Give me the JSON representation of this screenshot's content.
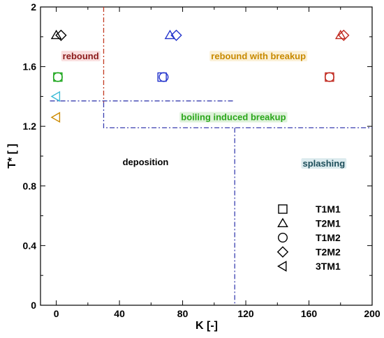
{
  "chart_data": {
    "type": "scatter",
    "xlabel": "K [-]",
    "ylabel": "T* [ ]",
    "xlim": [
      -10,
      200
    ],
    "ylim": [
      0,
      2
    ],
    "xticks": [
      "0",
      "40",
      "80",
      "120",
      "160",
      "200"
    ],
    "yticks": [
      "0",
      "0.4",
      "0.8",
      "1.2",
      "1.6",
      "2"
    ],
    "grid": false,
    "legend_position": "bottom-right",
    "series": [
      {
        "name": "T1M1",
        "marker": "square",
        "points": [
          {
            "x": 1,
            "y": 1.53
          },
          {
            "x": 67,
            "y": 1.53
          },
          {
            "x": 173,
            "y": 1.53
          }
        ]
      },
      {
        "name": "T2M1",
        "marker": "triangle",
        "points": [
          {
            "x": 0,
            "y": 1.81
          },
          {
            "x": 72,
            "y": 1.81
          },
          {
            "x": 180,
            "y": 1.81
          }
        ]
      },
      {
        "name": "T1M2",
        "marker": "circle",
        "points": [
          {
            "x": 1,
            "y": 1.53
          },
          {
            "x": 68,
            "y": 1.53
          },
          {
            "x": 173,
            "y": 1.53
          }
        ]
      },
      {
        "name": "T2M2",
        "marker": "diamond",
        "points": [
          {
            "x": 3,
            "y": 1.81
          },
          {
            "x": 76,
            "y": 1.81
          },
          {
            "x": 182,
            "y": 1.81
          }
        ]
      },
      {
        "name": "3TM1",
        "marker": "triangle-left",
        "points": [
          {
            "x": 0,
            "y": 1.4
          },
          {
            "x": 0,
            "y": 1.26
          }
        ]
      }
    ],
    "regions": [
      {
        "label": "rebound",
        "x": 4,
        "y": 1.65,
        "color": "#8b1a1a",
        "bg": "#f9dede"
      },
      {
        "label": "rebound with breakup",
        "x": 98,
        "y": 1.65,
        "color": "#c88a00",
        "bg": "#fbf0d6"
      },
      {
        "label": "boiling induced breakup",
        "x": 79,
        "y": 1.24,
        "color": "#2aa71b",
        "bg": "#def2da"
      },
      {
        "label": "deposition",
        "x": 42,
        "y": 0.94,
        "color": "#000000",
        "bg": ""
      },
      {
        "label": "splashing",
        "x": 156,
        "y": 0.93,
        "color": "#1d4e5a",
        "bg": "#dcebee"
      }
    ],
    "boundaries": [
      {
        "color": "#c23b22",
        "points": [
          [
            30,
            2
          ],
          [
            30,
            1.36
          ]
        ]
      },
      {
        "color": "#3a3fb0",
        "points": [
          [
            -4,
            1.37
          ],
          [
            113,
            1.37
          ]
        ]
      },
      {
        "color": "#3a3fb0",
        "points": [
          [
            30,
            1.36
          ],
          [
            30,
            1.19
          ],
          [
            200,
            1.19
          ]
        ]
      },
      {
        "color": "#3a3fb0",
        "points": [
          [
            113,
            1.19
          ],
          [
            113,
            0
          ]
        ]
      }
    ],
    "colors": {
      "left_cluster": "#000000",
      "left_cluster_highlight": "#1aa51a",
      "mid_cluster": "#2233cc",
      "right_cluster": "#c0281e",
      "left_triangle_upper": "#3bbbd6",
      "left_triangle_lower": "#cc8a00"
    }
  }
}
